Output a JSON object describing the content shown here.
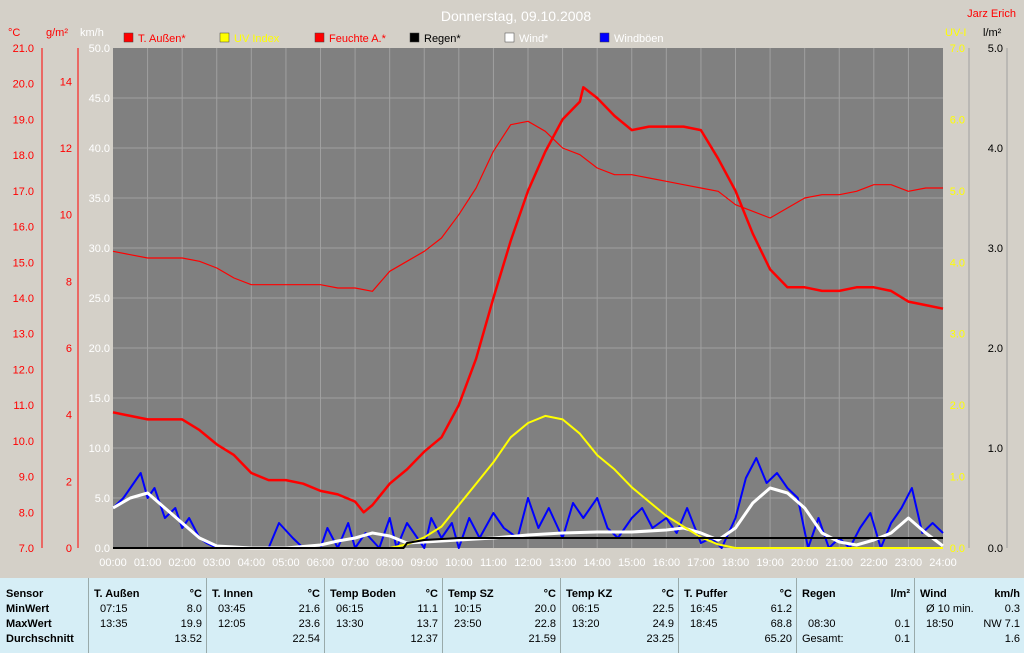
{
  "title": "Donnerstag, 09.10.2008",
  "author": "Jarz Erich",
  "legend": [
    {
      "label": "T. Außen*",
      "color": "#ff0000",
      "text_color": "#ff0000"
    },
    {
      "label": "UV Index",
      "color": "#ffff00",
      "text_color": "#ffff00"
    },
    {
      "label": "Feuchte A.*",
      "color": "#ff0000",
      "text_color": "#ff0000"
    },
    {
      "label": "Regen*",
      "color": "#000000",
      "text_color": "#000000"
    },
    {
      "label": "Wind*",
      "color": "#ffffff",
      "text_color": "#ffffff"
    },
    {
      "label": "Windböen",
      "color": "#0000ff",
      "text_color": "#ffffff"
    }
  ],
  "axes": {
    "temp_unit": "°C",
    "hum_unit": "g/m²",
    "wind_unit": "km/h",
    "uv_unit": "UV-I",
    "rain_unit": "l/m²",
    "temp_ticks": [
      "21.0",
      "20.0",
      "19.0",
      "18.0",
      "17.0",
      "16.0",
      "15.0",
      "14.0",
      "13.0",
      "12.0",
      "11.0",
      "10.0",
      "9.0",
      "8.0",
      "7.0"
    ],
    "hum_ticks": [
      "14",
      "12",
      "10",
      "8",
      "6",
      "4",
      "2",
      "0"
    ],
    "wind_ticks": [
      "50.0",
      "45.0",
      "40.0",
      "35.0",
      "30.0",
      "25.0",
      "20.0",
      "15.0",
      "10.0",
      "5.0",
      "0.0"
    ],
    "uv_ticks": [
      "7.0",
      "6.0",
      "5.0",
      "4.0",
      "3.0",
      "2.0",
      "1.0",
      "0.0"
    ],
    "rain_ticks": [
      "5.0",
      "4.0",
      "3.0",
      "2.0",
      "1.0",
      "0.0"
    ],
    "time_ticks": [
      "00:00",
      "01:00",
      "02:00",
      "03:00",
      "04:00",
      "05:00",
      "06:00",
      "07:00",
      "08:00",
      "09:00",
      "10:00",
      "11:00",
      "12:00",
      "13:00",
      "14:00",
      "15:00",
      "16:00",
      "17:00",
      "18:00",
      "19:00",
      "20:00",
      "21:00",
      "22:00",
      "23:00",
      "24:00"
    ]
  },
  "chart_data": {
    "type": "line",
    "title": "Donnerstag, 09.10.2008",
    "x_unit": "hour",
    "xlim": [
      0,
      24
    ],
    "series": [
      {
        "name": "T. Außen*",
        "axis": "°C",
        "ylim": [
          7,
          21
        ],
        "x": [
          0,
          0.5,
          1,
          1.5,
          2,
          2.5,
          3,
          3.5,
          4,
          4.5,
          5,
          5.5,
          6,
          6.5,
          7,
          7.25,
          7.5,
          8,
          8.5,
          9,
          9.5,
          10,
          10.5,
          11,
          11.5,
          12,
          12.5,
          13,
          13.5,
          13.6,
          14,
          14.5,
          15,
          15.5,
          16,
          16.5,
          17,
          17.5,
          18,
          18.5,
          19,
          19.5,
          20,
          20.5,
          21,
          21.5,
          22,
          22.5,
          23,
          23.5,
          24
        ],
        "y": [
          10.8,
          10.7,
          10.6,
          10.6,
          10.6,
          10.3,
          9.9,
          9.6,
          9.1,
          8.9,
          8.9,
          8.8,
          8.6,
          8.5,
          8.3,
          8.0,
          8.2,
          8.8,
          9.2,
          9.7,
          10.1,
          11.0,
          12.3,
          14.0,
          15.6,
          17.0,
          18.1,
          19.0,
          19.5,
          19.9,
          19.6,
          19.1,
          18.7,
          18.8,
          18.8,
          18.8,
          18.7,
          17.9,
          17.0,
          15.8,
          14.8,
          14.3,
          14.3,
          14.2,
          14.2,
          14.3,
          14.3,
          14.2,
          13.9,
          13.8,
          13.7
        ]
      },
      {
        "name": "Feuchte A.*",
        "axis": "g/m²",
        "ylim": [
          0,
          15
        ],
        "x": [
          0,
          0.5,
          1,
          1.5,
          2,
          2.5,
          3,
          3.5,
          4,
          4.5,
          5,
          5.5,
          6,
          6.5,
          7,
          7.5,
          8,
          8.5,
          9,
          9.5,
          10,
          10.5,
          11,
          11.5,
          12,
          12.5,
          13,
          13.5,
          14,
          14.5,
          15,
          15.5,
          16,
          16.5,
          17,
          17.5,
          18,
          18.5,
          19,
          19.5,
          20,
          20.5,
          21,
          21.5,
          22,
          22.5,
          23,
          23.5,
          24
        ],
        "y": [
          8.9,
          8.8,
          8.7,
          8.7,
          8.7,
          8.6,
          8.4,
          8.1,
          7.9,
          7.9,
          7.9,
          7.9,
          7.9,
          7.8,
          7.8,
          7.7,
          8.3,
          8.6,
          8.9,
          9.3,
          10.0,
          10.8,
          11.9,
          12.7,
          12.8,
          12.5,
          12.0,
          11.8,
          11.4,
          11.2,
          11.2,
          11.1,
          11.0,
          10.9,
          10.8,
          10.7,
          10.3,
          10.1,
          9.9,
          10.2,
          10.5,
          10.6,
          10.6,
          10.7,
          10.9,
          10.9,
          10.7,
          10.8,
          10.8
        ]
      },
      {
        "name": "UV Index",
        "axis": "UV-I",
        "ylim": [
          0,
          7
        ],
        "x": [
          0,
          8,
          8.5,
          9,
          9.5,
          10,
          10.5,
          11,
          11.5,
          12,
          12.5,
          13,
          13.5,
          14,
          14.5,
          15,
          15.5,
          16,
          16.5,
          17,
          17.5,
          18,
          24
        ],
        "y": [
          0,
          0,
          0.05,
          0.15,
          0.3,
          0.6,
          0.9,
          1.2,
          1.55,
          1.75,
          1.85,
          1.8,
          1.6,
          1.3,
          1.1,
          0.85,
          0.65,
          0.45,
          0.3,
          0.15,
          0.05,
          0,
          0
        ]
      },
      {
        "name": "Regen*",
        "axis": "l/m²",
        "ylim": [
          0,
          5
        ],
        "x": [
          0,
          8.4,
          8.5,
          9,
          10,
          11,
          12,
          13,
          14,
          15,
          16,
          17,
          18,
          19,
          20,
          21,
          22,
          23,
          24
        ],
        "y": [
          0,
          0,
          0.05,
          0.08,
          0.1,
          0.1,
          0.1,
          0.1,
          0.1,
          0.1,
          0.1,
          0.1,
          0.1,
          0.1,
          0.1,
          0.1,
          0.1,
          0.1,
          0.1
        ]
      },
      {
        "name": "Wind*",
        "axis": "km/h",
        "ylim": [
          0,
          50
        ],
        "x": [
          0,
          0.5,
          1,
          1.5,
          2,
          2.5,
          3,
          4,
          5,
          6,
          6.5,
          7,
          7.5,
          8,
          8.5,
          9,
          10,
          11,
          12,
          13,
          14,
          15,
          16,
          16.5,
          17,
          17.5,
          18,
          18.5,
          19,
          19.5,
          20,
          20.5,
          21,
          21.5,
          22,
          22.5,
          23,
          23.5,
          24
        ],
        "y": [
          4.0,
          5.0,
          5.5,
          4.0,
          2.5,
          1.0,
          0.2,
          0,
          0,
          0.3,
          0.7,
          1.0,
          1.5,
          1.2,
          0.5,
          0.6,
          0.8,
          1.0,
          1.3,
          1.5,
          1.6,
          1.6,
          1.8,
          2.0,
          1.5,
          0.8,
          2.0,
          4.5,
          6.0,
          5.5,
          4.0,
          1.5,
          0.6,
          0.3,
          0.8,
          1.5,
          3.0,
          1.5,
          0.2
        ]
      },
      {
        "name": "Windböen",
        "axis": "km/h",
        "ylim": [
          0,
          50
        ],
        "x": [
          0,
          0.3,
          0.6,
          0.8,
          1,
          1.2,
          1.5,
          1.8,
          2,
          2.2,
          2.5,
          2.7,
          3,
          4,
          4.5,
          4.8,
          5.2,
          5.5,
          6,
          6.2,
          6.5,
          6.8,
          7,
          7.3,
          7.7,
          8,
          8.2,
          8.5,
          9,
          9.2,
          9.5,
          9.8,
          10,
          10.3,
          10.6,
          11,
          11.3,
          11.7,
          12,
          12.3,
          12.6,
          13,
          13.3,
          13.6,
          14,
          14.3,
          14.6,
          15,
          15.3,
          15.6,
          16,
          16.3,
          16.6,
          17,
          17.3,
          17.6,
          18,
          18.3,
          18.6,
          18.9,
          19.2,
          19.5,
          19.8,
          20.1,
          20.4,
          20.7,
          21,
          21.3,
          21.6,
          21.9,
          22.2,
          22.5,
          22.8,
          23.1,
          23.4,
          23.7,
          24
        ],
        "y": [
          4,
          5,
          6.5,
          7.5,
          5,
          6,
          3,
          4,
          2,
          3,
          1,
          0.5,
          0,
          0,
          0,
          2.5,
          1,
          0,
          0,
          2,
          0,
          2.5,
          0,
          1.5,
          0,
          3,
          0,
          2.5,
          0,
          3,
          1,
          2.5,
          0,
          3,
          1,
          3.5,
          2,
          1,
          5,
          2,
          4,
          1,
          4.5,
          3,
          5,
          2,
          1,
          3,
          4,
          2,
          3,
          1.5,
          4,
          0.5,
          1,
          0,
          3,
          7,
          9,
          6.5,
          7.5,
          6,
          5,
          0,
          3,
          0,
          1,
          0,
          2,
          3.5,
          0,
          2.5,
          4,
          6,
          1.5,
          2.5,
          1.5
        ]
      }
    ]
  },
  "table": {
    "header_sensor": "Sensor",
    "row_labels": [
      "MinWert",
      "MaxWert",
      "Durchschnitt"
    ],
    "columns": [
      {
        "name": "T. Außen",
        "unit": "°C",
        "min_time": "07:15",
        "min": "8.0",
        "max_time": "13:35",
        "max": "19.9",
        "avg_label": "",
        "avg": "13.52"
      },
      {
        "name": "T. Innen",
        "unit": "°C",
        "min_time": "03:45",
        "min": "21.6",
        "max_time": "12:05",
        "max": "23.6",
        "avg_label": "",
        "avg": "22.54"
      },
      {
        "name": "Temp Boden",
        "unit": "°C",
        "min_time": "06:15",
        "min": "11.1",
        "max_time": "13:30",
        "max": "13.7",
        "avg_label": "",
        "avg": "12.37"
      },
      {
        "name": "Temp SZ",
        "unit": "°C",
        "min_time": "10:15",
        "min": "20.0",
        "max_time": "23:50",
        "max": "22.8",
        "avg_label": "",
        "avg": "21.59"
      },
      {
        "name": "Temp KZ",
        "unit": "°C",
        "min_time": "06:15",
        "min": "22.5",
        "max_time": "13:20",
        "max": "24.9",
        "avg_label": "",
        "avg": "23.25"
      },
      {
        "name": "T. Puffer",
        "unit": "°C",
        "min_time": "16:45",
        "min": "61.2",
        "max_time": "18:45",
        "max": "68.8",
        "avg_label": "",
        "avg": "65.20"
      },
      {
        "name": "Regen",
        "unit": "l/m²",
        "min_time": "",
        "min": "",
        "max_time": "08:30",
        "max": "0.1",
        "avg_label": "Gesamt:",
        "avg": "0.1"
      },
      {
        "name": "Wind",
        "unit": "km/h",
        "min_time": "Ø 10 min.",
        "min": "0.3",
        "max_time": "18:50",
        "max": "NW 7.1",
        "avg_label": "",
        "avg": "1.6"
      }
    ]
  }
}
